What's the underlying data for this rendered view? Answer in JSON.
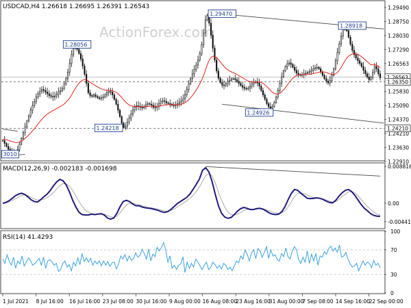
{
  "chart_data": [
    {
      "type": "candlestick",
      "title": "USDCAD,H4  1.26618 1.26695 1.26391 1.26543",
      "watermark": "ActionForex.com",
      "ylim": [
        1.2275,
        1.3005
      ],
      "y_tick_labels": [
        "1.29490",
        "1.28750",
        "1.28030",
        "1.27290",
        "1.26563",
        "1.26350",
        "1.25830",
        "1.25090",
        "1.24370",
        "1.24210",
        "1.23630",
        "1.22910"
      ],
      "price_boxes": [
        {
          "label": "1.26563",
          "value": 1.26563
        },
        {
          "label": "1.26350",
          "value": 1.2635
        },
        {
          "label": "1.24210",
          "value": 1.2421
        }
      ],
      "annotations": [
        {
          "label": "1.29470",
          "x": 118,
          "y": 1.2947
        },
        {
          "label": "1.28056",
          "x": 40,
          "y": 1.28056
        },
        {
          "label": "1.28918",
          "x": 188,
          "y": 1.28918
        },
        {
          "label": "1.24218",
          "x": 57,
          "y": 1.24218
        },
        {
          "label": "1.24926",
          "x": 138,
          "y": 1.24926
        },
        {
          "label": "3010",
          "x": 4,
          "y": 1.2301
        }
      ],
      "close": [
        1.2365,
        1.2352,
        1.2338,
        1.2325,
        1.2318,
        1.2312,
        1.2305,
        1.231,
        1.2325,
        1.2348,
        1.2375,
        1.2402,
        1.2428,
        1.2455,
        1.2478,
        1.2505,
        1.2525,
        1.2545,
        1.2565,
        1.258,
        1.2592,
        1.26,
        1.2595,
        1.2588,
        1.258,
        1.2572,
        1.2568,
        1.2565,
        1.257,
        1.2578,
        1.2588,
        1.2595,
        1.2605,
        1.2625,
        1.265,
        1.268,
        1.272,
        1.276,
        1.279,
        1.28,
        1.2785,
        1.2765,
        1.274,
        1.2708,
        1.267,
        1.2628,
        1.2585,
        1.2572,
        1.2568,
        1.2575,
        1.2568,
        1.2562,
        1.2558,
        1.2562,
        1.2565,
        1.2575,
        1.2585,
        1.259,
        1.2588,
        1.2575,
        1.2555,
        1.2532,
        1.2505,
        1.2475,
        1.2445,
        1.2425,
        1.2432,
        1.245,
        1.2468,
        1.2488,
        1.2505,
        1.2518,
        1.2525,
        1.2522,
        1.2518,
        1.2515,
        1.2522,
        1.253,
        1.2535,
        1.2532,
        1.2528,
        1.2518,
        1.2515,
        1.2522,
        1.2535,
        1.2545,
        1.2548,
        1.2545,
        1.2538,
        1.2535,
        1.2532,
        1.2528,
        1.2525,
        1.2528,
        1.2535,
        1.2542,
        1.2548,
        1.2558,
        1.2575,
        1.26,
        1.2625,
        1.265,
        1.2672,
        1.2692,
        1.2712,
        1.2735,
        1.2765,
        1.2805,
        1.286,
        1.292,
        1.294,
        1.2905,
        1.285,
        1.279,
        1.2735,
        1.2685,
        1.2652,
        1.2632,
        1.262,
        1.2618,
        1.2625,
        1.2635,
        1.2642,
        1.2648,
        1.265,
        1.2645,
        1.2638,
        1.2628,
        1.2618,
        1.261,
        1.2605,
        1.2602,
        1.2606,
        1.2615,
        1.2625,
        1.2632,
        1.2635,
        1.263,
        1.2615,
        1.2595,
        1.2575,
        1.2555,
        1.2535,
        1.252,
        1.2515,
        1.2522,
        1.254,
        1.2565,
        1.2595,
        1.2628,
        1.2658,
        1.2685,
        1.2705,
        1.2718,
        1.2722,
        1.2715,
        1.2702,
        1.2688,
        1.2675,
        1.2668,
        1.2665,
        1.2668,
        1.2672,
        1.2675,
        1.2678,
        1.2682,
        1.2688,
        1.2695,
        1.27,
        1.2702,
        1.2695,
        1.268,
        1.2665,
        1.265,
        1.2638,
        1.263,
        1.2642,
        1.2665,
        1.2695,
        1.2732,
        1.277,
        1.281,
        1.2845,
        1.2875,
        1.2885,
        1.287,
        1.284,
        1.2808,
        1.278,
        1.276,
        1.2745,
        1.2732,
        1.272,
        1.2705,
        1.2688,
        1.2672,
        1.2658,
        1.2645,
        1.2655,
        1.268,
        1.2706,
        1.2695,
        1.2672,
        1.2654
      ],
      "ma_close": [
        1.2372,
        1.2371,
        1.2369,
        1.2366,
        1.2363,
        1.2361,
        1.2358,
        1.2356,
        1.2356,
        1.2358,
        1.2362,
        1.2368,
        1.2375,
        1.2382,
        1.2391,
        1.24,
        1.241,
        1.242,
        1.2431,
        1.2442,
        1.2452,
        1.2463,
        1.2472,
        1.248,
        1.2487,
        1.2493,
        1.2498,
        1.2503,
        1.2507,
        1.2512,
        1.2517,
        1.2522,
        1.2527,
        1.2533,
        1.2541,
        1.255,
        1.2561,
        1.2575,
        1.259,
        1.2605,
        1.2618,
        1.2629,
        1.2637,
        1.2643,
        1.2645,
        1.2644,
        1.2639,
        1.2633,
        1.2627,
        1.2622,
        1.2617,
        1.2612,
        1.2607,
        1.2603,
        1.26,
        1.2597,
        1.2596,
        1.2596,
        1.2595,
        1.2594,
        1.2591,
        1.2587,
        1.258,
        1.2572,
        1.2563,
        1.2552,
        1.2543,
        1.2535,
        1.2529,
        1.2525,
        1.2523,
        1.2522,
        1.2522,
        1.2522,
        1.2521,
        1.252,
        1.252,
        1.2521,
        1.2522,
        1.2523,
        1.2523,
        1.2523,
        1.2522,
        1.2522,
        1.2523,
        1.2525,
        1.2527,
        1.2529,
        1.2529,
        1.253,
        1.253,
        1.253,
        1.253,
        1.2529,
        1.253,
        1.2531,
        1.2532,
        1.2535,
        1.2539,
        1.2545,
        1.2552,
        1.2562,
        1.2572,
        1.2584,
        1.2597,
        1.261,
        1.2626,
        1.2643,
        1.2664,
        1.2689,
        1.2714,
        1.2734,
        1.2746,
        1.2753,
        1.2752,
        1.2747,
        1.2738,
        1.2727,
        1.2716,
        1.2706,
        1.2697,
        1.2691,
        1.2685,
        1.2681,
        1.2677,
        1.2673,
        1.2669,
        1.2664,
        1.2659,
        1.2654,
        1.2648,
        1.2643,
        1.2639,
        1.2636,
        1.2635,
        1.2634,
        1.2634,
        1.2634,
        1.2634,
        1.2632,
        1.2628,
        1.2622,
        1.2614,
        1.2605,
        1.2596,
        1.2587,
        1.2582,
        1.2579,
        1.2579,
        1.2583,
        1.2589,
        1.2598,
        1.2608,
        1.262,
        1.2632,
        1.2642,
        1.2652,
        1.2659,
        1.2664,
        1.2666,
        1.2668,
        1.2668,
        1.2668,
        1.2669,
        1.267,
        1.267,
        1.2671,
        1.2673,
        1.2675,
        1.2677,
        1.2679,
        1.2681,
        1.2681,
        1.268,
        1.2678,
        1.2675,
        1.2671,
        1.2669,
        1.2669,
        1.2672,
        1.2679,
        1.2689,
        1.2701,
        1.2716,
        1.2731,
        1.2744,
        1.2753,
        1.2759,
        1.2763,
        1.2764,
        1.2763,
        1.2761,
        1.2756,
        1.275,
        1.2743,
        1.2736,
        1.2728,
        1.272,
        1.2714,
        1.2713,
        1.2714,
        1.2711,
        1.2707,
        1.27
      ],
      "trendlines": [
        {
          "from": {
            "x": 118,
            "y": 1.2947
          },
          "to": {
            "x": 205,
            "y": 1.2878
          }
        },
        {
          "from": {
            "x": 118,
            "y": 1.2532
          },
          "to": {
            "x": 205,
            "y": 1.2445
          }
        },
        {
          "from": {
            "x": 0,
            "y": 1.2418
          },
          "to": {
            "x": 8,
            "y": 1.2408
          }
        },
        {
          "from": {
            "x": 0,
            "y": 1.2292
          },
          "to": {
            "x": 12,
            "y": 1.2302
          }
        }
      ],
      "x_tick_labels": [
        "1 Jul 2021",
        "8 Jul 16:00",
        "16 Jul 16:00",
        "23 Jul 08:00",
        "30 Jul 16:00",
        "9 Aug 00:00",
        "16 Aug 08:00",
        "23 Aug 16:00",
        "31 Aug 00:00",
        "7 Sep 08:00",
        "14 Sep 16:00",
        "22 Sep 00:00"
      ]
    },
    {
      "type": "line",
      "title": "MACD(12,26,9) -0.002183 -0.001698",
      "ylim": [
        -0.0059,
        0.0095
      ],
      "y_tick_labels": [
        "0.008816",
        "0.00",
        "-0.004416"
      ],
      "series": [
        {
          "values": [
            0.0,
            0.0002,
            0.0006,
            0.0012,
            0.0018,
            0.0022,
            0.0024,
            0.0021,
            0.0015,
            0.0008,
            0.0004,
            0.0003,
            0.0009,
            0.0016,
            0.0022,
            0.0031,
            0.0042,
            0.0051,
            0.0057,
            0.0054,
            0.0044,
            0.0028,
            0.0008,
            -0.0008,
            -0.0021,
            -0.0027,
            -0.0028,
            -0.0028,
            -0.0026,
            -0.0027,
            -0.0026,
            -0.0025,
            -0.0028,
            -0.0035,
            -0.0038,
            -0.0035,
            -0.0024,
            -0.0008,
            0.0004,
            0.0007,
            0.0004,
            -0.0002,
            -0.0006,
            -0.0006,
            -0.0009,
            -0.0011,
            -0.0012,
            -0.0013,
            -0.0015,
            -0.0017,
            -0.002,
            -0.0022,
            -0.002,
            -0.0015,
            -0.0008,
            -0.0001,
            0.0004,
            0.0009,
            0.0014,
            0.0022,
            0.0033,
            0.0045,
            0.0058,
            0.0079,
            0.0085,
            0.0075,
            0.0052,
            0.0022,
            -0.0006,
            -0.0024,
            -0.0033,
            -0.0036,
            -0.0034,
            -0.0027,
            -0.0019,
            -0.0013,
            -0.001,
            -0.0012,
            -0.0015,
            -0.0015,
            -0.0013,
            -0.0012,
            -0.0014,
            -0.0018,
            -0.0023,
            -0.0026,
            -0.0027,
            -0.0026,
            -0.002,
            -0.0008,
            0.0009,
            0.0024,
            0.0033,
            0.0031,
            0.0024,
            0.0018,
            0.0012,
            0.0011,
            0.0012,
            0.0013,
            0.0012,
            0.0009,
            0.0005,
            0.0002,
            0.0001,
            0.0007,
            0.0017,
            0.0025,
            0.0031,
            0.0033,
            0.0028,
            0.0019,
            0.0008,
            -0.0003,
            -0.0012,
            -0.0018,
            -0.0025,
            -0.0029,
            -0.0031,
            -0.0031
          ]
        },
        {
          "values": [
            0.0,
            0.0001,
            0.0003,
            0.0007,
            0.0011,
            0.0015,
            0.0019,
            0.002,
            0.0018,
            0.0014,
            0.001,
            0.0008,
            0.0008,
            0.001,
            0.0014,
            0.0019,
            0.0026,
            0.0034,
            0.0042,
            0.0047,
            0.0046,
            0.0041,
            0.0031,
            0.0018,
            0.0005,
            -0.0007,
            -0.0016,
            -0.0021,
            -0.0025,
            -0.0026,
            -0.0026,
            -0.0026,
            -0.0026,
            -0.0029,
            -0.0032,
            -0.0034,
            -0.0031,
            -0.0023,
            -0.0013,
            -0.0004,
            0.0,
            0.0001,
            -0.0002,
            -0.0004,
            -0.0006,
            -0.0008,
            -0.001,
            -0.0011,
            -0.0013,
            -0.0014,
            -0.0016,
            -0.0018,
            -0.0019,
            -0.0017,
            -0.0014,
            -0.0009,
            -0.0004,
            0.0001,
            0.0006,
            0.0012,
            0.0019,
            0.0028,
            0.0039,
            0.0053,
            0.0066,
            0.0072,
            0.0066,
            0.0049,
            0.0027,
            0.0007,
            -0.0009,
            -0.0021,
            -0.0027,
            -0.0028,
            -0.0026,
            -0.0022,
            -0.0017,
            -0.0015,
            -0.0014,
            -0.0015,
            -0.0014,
            -0.0013,
            -0.0013,
            -0.0015,
            -0.0018,
            -0.0021,
            -0.0023,
            -0.0024,
            -0.0023,
            -0.0018,
            -0.0008,
            0.0004,
            0.0016,
            0.0023,
            0.0025,
            0.0023,
            0.002,
            0.0016,
            0.0014,
            0.0013,
            0.0012,
            0.0011,
            0.0008,
            0.0005,
            0.0003,
            0.0004,
            0.0009,
            0.0016,
            0.0022,
            0.0027,
            0.0028,
            0.0025,
            0.0018,
            0.0009,
            0.0,
            -0.0008,
            -0.0015,
            -0.0021,
            -0.0026,
            -0.0028
          ]
        }
      ],
      "trendline": {
        "from": {
          "x": 64,
          "y": 0.0088
        },
        "to": {
          "x": 119,
          "y": 0.0065
        }
      }
    },
    {
      "type": "line",
      "title": "RSI(14) 41.4293",
      "ylim": [
        0,
        100
      ],
      "y_tick_labels": [
        "100",
        "70",
        "30",
        "0"
      ],
      "levels": [
        70,
        30
      ],
      "series": [
        {
          "values": [
            55,
            48,
            62,
            52,
            45,
            58,
            40,
            52,
            47,
            60,
            44,
            50,
            57,
            52,
            45,
            48,
            52,
            56,
            45,
            58,
            40,
            52,
            54,
            50,
            45,
            48,
            35,
            38,
            48,
            52,
            42,
            46,
            36,
            50,
            44,
            57,
            46,
            64,
            51,
            57,
            50,
            56,
            45,
            52,
            47,
            52,
            44,
            52,
            45,
            51,
            43,
            49,
            50,
            39,
            47,
            60,
            55,
            62,
            52,
            60,
            53,
            56,
            65,
            58,
            61,
            71,
            64,
            55,
            71,
            52,
            63,
            59,
            74,
            68,
            74,
            82,
            70,
            50,
            60,
            40,
            45,
            38,
            45,
            47,
            59,
            33,
            50,
            40,
            48,
            42,
            55,
            50,
            44,
            38,
            45,
            50,
            38,
            42,
            50,
            46,
            40,
            45,
            39,
            48,
            45,
            38,
            42,
            36,
            44,
            52,
            49,
            60,
            55,
            70,
            63,
            52,
            65,
            70,
            56,
            72,
            68,
            58,
            66,
            75,
            56,
            70,
            60,
            62,
            54,
            52,
            64,
            59,
            73,
            59,
            55,
            68,
            75,
            70,
            54,
            48,
            58,
            50,
            68,
            48,
            63,
            52,
            64,
            45,
            60,
            58,
            67,
            63,
            72,
            76,
            68,
            73,
            66,
            78,
            58,
            60,
            66,
            55,
            47,
            42,
            44,
            48,
            36,
            44,
            52,
            45,
            50,
            48,
            41,
            53,
            45,
            48,
            41
          ]
        }
      ]
    }
  ]
}
